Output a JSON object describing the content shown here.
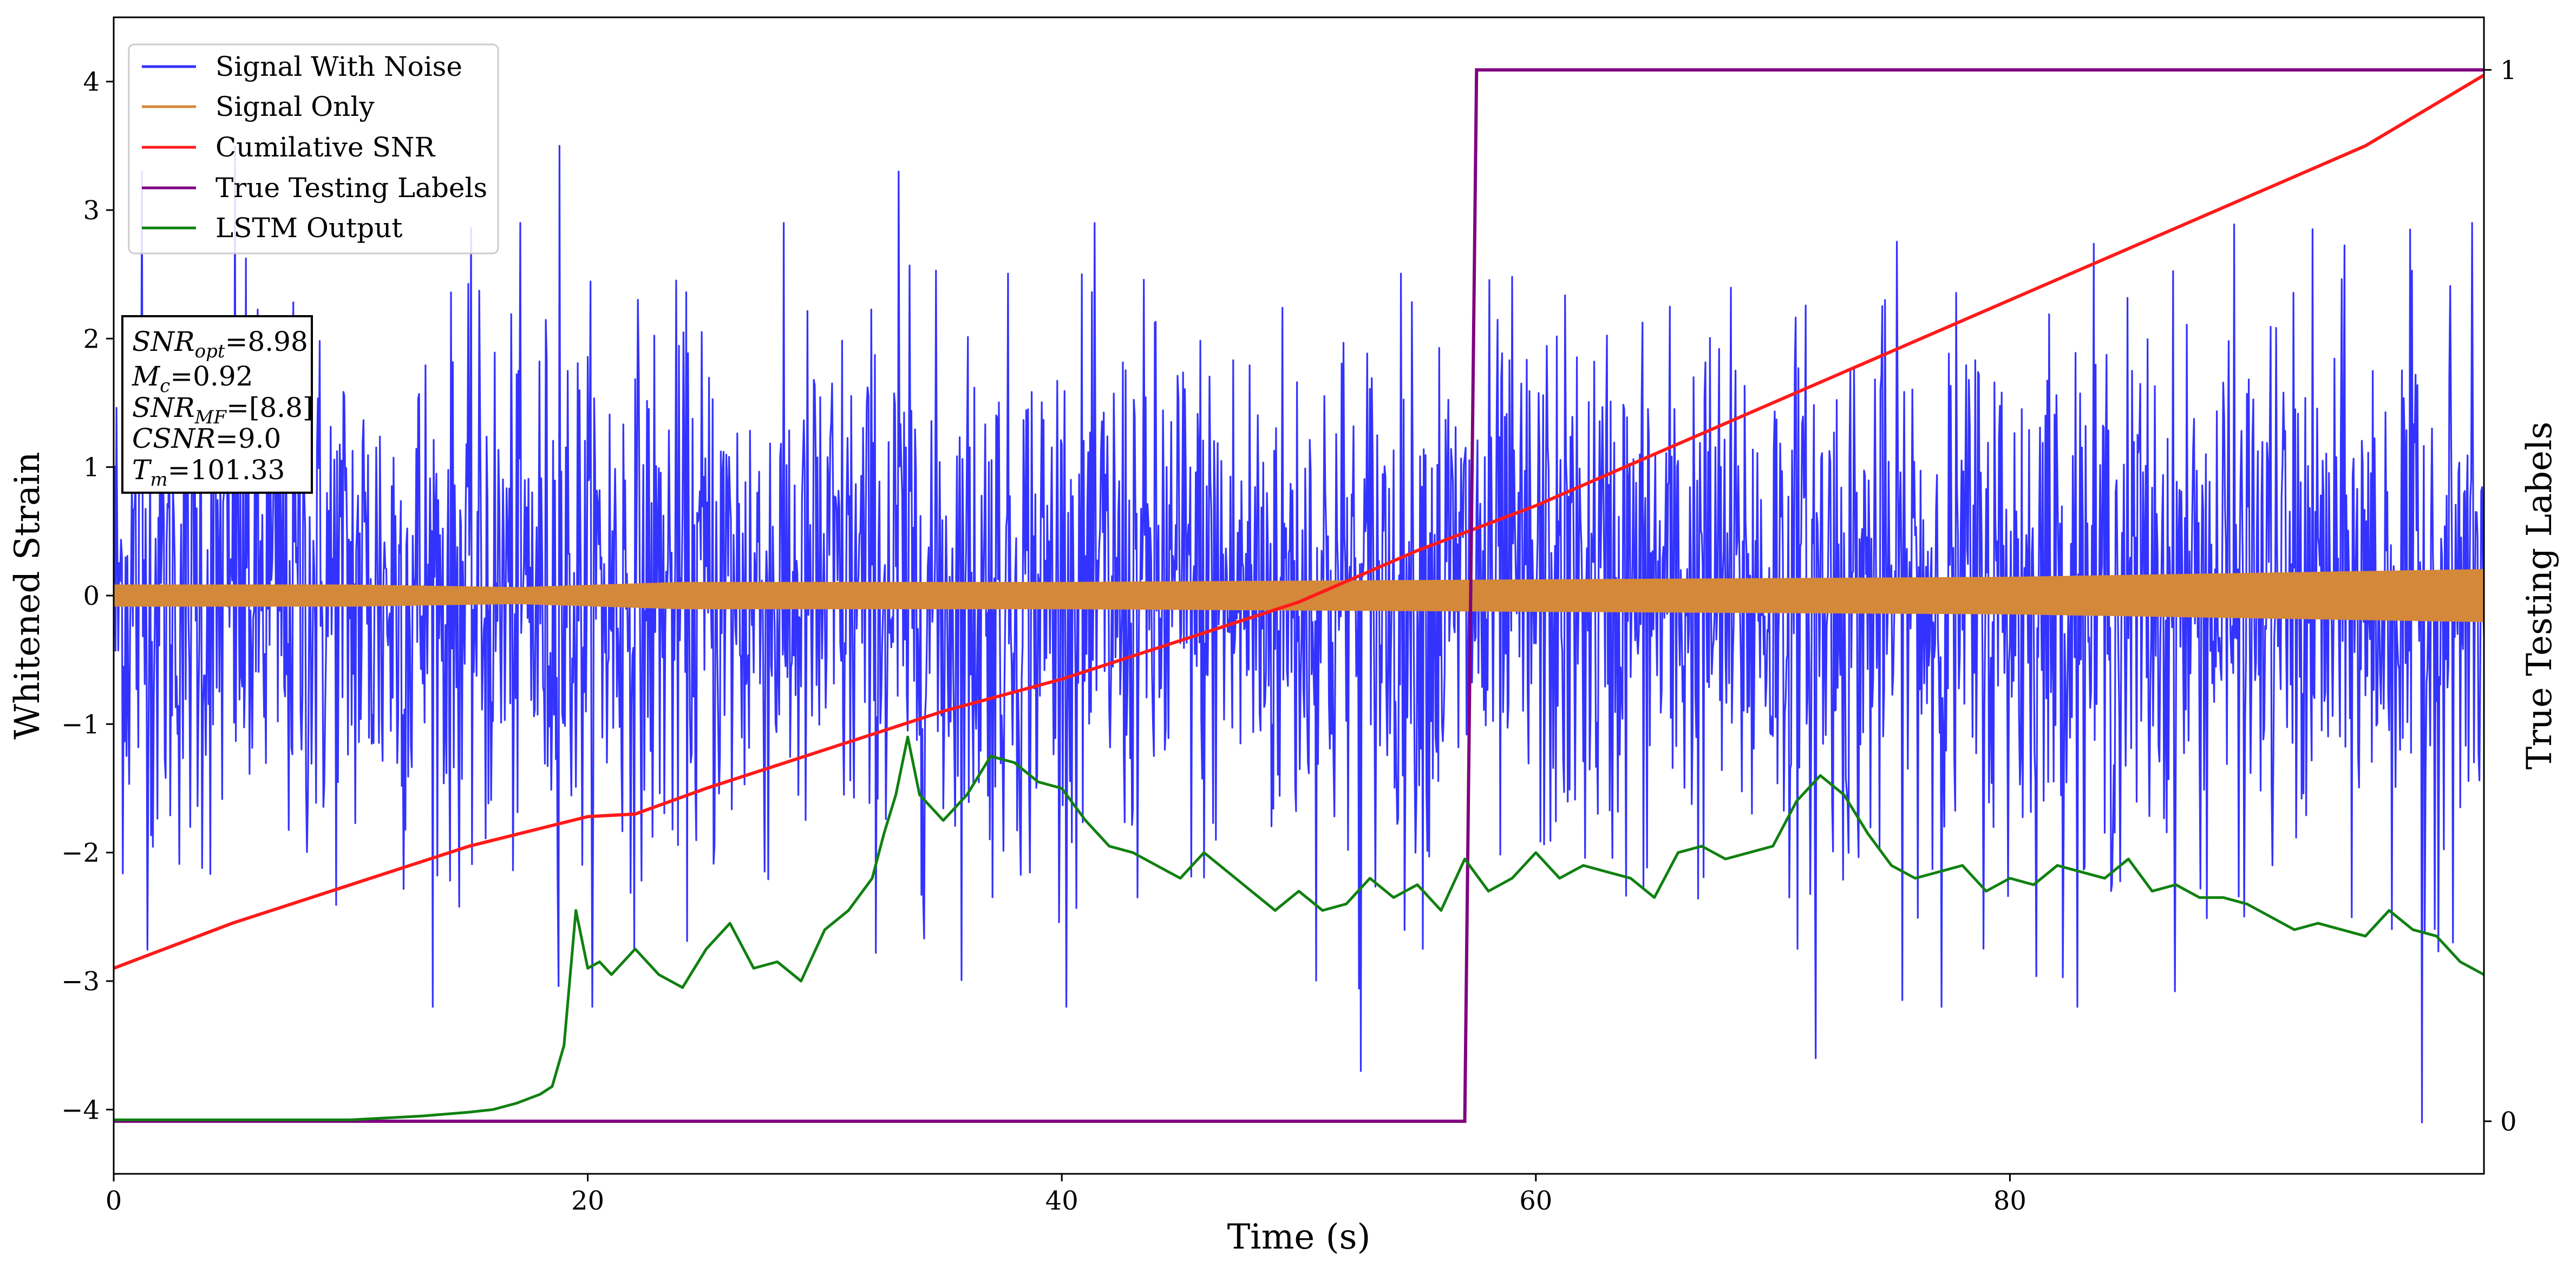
{
  "chart_data": {
    "type": "line",
    "xlabel": "Time (s)",
    "ylabel": "Whitened Strain",
    "y2label": "True Testing Labels",
    "xlim": [
      0,
      100
    ],
    "ylim": [
      -4.5,
      4.5
    ],
    "y2lim": [
      -0.05,
      1.05
    ],
    "xticks": [
      0,
      20,
      40,
      60,
      80
    ],
    "yticks": [
      -4,
      -3,
      -2,
      -1,
      0,
      1,
      2,
      3,
      4
    ],
    "y2ticks": [
      0,
      1
    ],
    "grid": false,
    "legend_position": "top-left",
    "colors": {
      "signal_with_noise": "#3333ff",
      "signal_only": "#d4883a",
      "cumulative_snr": "#ff1a1a",
      "true_labels": "#800080",
      "lstm_output": "#108010"
    },
    "series": [
      {
        "name": "Signal With Noise",
        "key": "signal_with_noise",
        "description_range": [
          -4.1,
          3.5
        ],
        "notable_points": [
          {
            "x": 1.2,
            "y": 3.3
          },
          {
            "x": 5.1,
            "y": 3.5
          },
          {
            "x": 18.8,
            "y": 3.5
          },
          {
            "x": 33.1,
            "y": 3.3
          },
          {
            "x": 52.6,
            "y": -3.7
          },
          {
            "x": 71.8,
            "y": -3.6
          },
          {
            "x": 97.4,
            "y": -4.1
          }
        ]
      },
      {
        "name": "Signal Only",
        "key": "signal_only",
        "amplitude": [
          [
            0,
            0.08
          ],
          [
            10,
            0.08
          ],
          [
            17,
            0.06
          ],
          [
            24,
            0.1
          ],
          [
            40,
            0.1
          ],
          [
            60,
            0.12
          ],
          [
            80,
            0.14
          ],
          [
            100,
            0.2
          ]
        ]
      },
      {
        "name": "Cumilative SNR",
        "key": "cumulative_snr",
        "x": [
          0,
          5,
          10,
          15,
          20,
          22,
          25,
          30,
          35,
          40,
          45,
          50,
          55,
          60,
          65,
          70,
          75,
          80,
          85,
          90,
          95,
          100
        ],
        "y": [
          -2.9,
          -2.55,
          -2.25,
          -1.95,
          -1.72,
          -1.7,
          -1.5,
          -1.2,
          -0.9,
          -0.65,
          -0.35,
          -0.05,
          0.35,
          0.7,
          1.1,
          1.5,
          1.9,
          2.3,
          2.7,
          3.1,
          3.5,
          4.05
        ]
      },
      {
        "name": "True Testing Labels",
        "key": "true_labels",
        "axis": "y2",
        "x": [
          0,
          57,
          57.5,
          100
        ],
        "y": [
          0,
          0,
          1,
          1
        ]
      },
      {
        "name": "LSTM Output",
        "key": "lstm_output",
        "x": [
          0,
          10,
          13,
          15,
          16,
          17,
          18,
          18.5,
          19,
          19.5,
          20,
          20.5,
          21,
          21.5,
          22,
          23,
          24,
          25,
          26,
          27,
          28,
          29,
          30,
          31,
          32,
          32.5,
          33,
          33.5,
          34,
          35,
          36,
          37,
          38,
          39,
          40,
          41,
          42,
          43,
          44,
          45,
          46,
          47,
          48,
          49,
          50,
          51,
          52,
          53,
          54,
          55,
          56,
          57,
          58,
          59,
          60,
          61,
          62,
          63,
          64,
          65,
          66,
          67,
          68,
          69,
          70,
          71,
          72,
          73,
          74,
          75,
          76,
          77,
          78,
          79,
          80,
          81,
          82,
          83,
          84,
          85,
          86,
          87,
          88,
          89,
          90,
          91,
          92,
          93,
          94,
          95,
          96,
          97,
          98,
          99,
          100
        ],
        "y": [
          -4.08,
          -4.08,
          -4.05,
          -4.02,
          -4.0,
          -3.95,
          -3.88,
          -3.82,
          -3.5,
          -2.45,
          -2.9,
          -2.85,
          -2.95,
          -2.85,
          -2.75,
          -2.95,
          -3.05,
          -2.75,
          -2.55,
          -2.9,
          -2.85,
          -3.0,
          -2.6,
          -2.45,
          -2.2,
          -1.85,
          -1.55,
          -1.1,
          -1.55,
          -1.75,
          -1.55,
          -1.25,
          -1.3,
          -1.45,
          -1.5,
          -1.75,
          -1.95,
          -2.0,
          -2.1,
          -2.2,
          -2.0,
          -2.15,
          -2.3,
          -2.45,
          -2.3,
          -2.45,
          -2.4,
          -2.2,
          -2.35,
          -2.25,
          -2.45,
          -2.05,
          -2.3,
          -2.2,
          -2.0,
          -2.2,
          -2.1,
          -2.15,
          -2.2,
          -2.35,
          -2.0,
          -1.95,
          -2.05,
          -2.0,
          -1.95,
          -1.6,
          -1.4,
          -1.55,
          -1.85,
          -2.1,
          -2.2,
          -2.15,
          -2.1,
          -2.3,
          -2.2,
          -2.25,
          -2.1,
          -2.15,
          -2.2,
          -2.05,
          -2.3,
          -2.25,
          -2.35,
          -2.35,
          -2.4,
          -2.5,
          -2.6,
          -2.55,
          -2.6,
          -2.65,
          -2.45,
          -2.6,
          -2.65,
          -2.85,
          -2.95
        ]
      }
    ],
    "stats_box": [
      "SNR_opt=8.98",
      "M_c=0.92",
      "SNR_MF=[8.8]",
      "CSNR=9.0",
      "T_m=101.33"
    ]
  },
  "legend": {
    "items": [
      {
        "label": "Signal With Noise",
        "key": "signal_with_noise"
      },
      {
        "label": "Signal Only",
        "key": "signal_only"
      },
      {
        "label": "Cumilative SNR",
        "key": "cumulative_snr"
      },
      {
        "label": "True Testing Labels",
        "key": "true_labels"
      },
      {
        "label": "LSTM Output",
        "key": "lstm_output"
      }
    ]
  },
  "stats": {
    "snr_opt_sym": "SNR",
    "snr_opt_sub": "opt",
    "snr_opt_val": "=8.98",
    "mc_sym": "M",
    "mc_sub": "c",
    "mc_val": "=0.92",
    "snr_mf_sym": "SNR",
    "snr_mf_sub": "MF",
    "snr_mf_val": "=[8.8]",
    "csnr_sym": "CSNR",
    "csnr_val": "=9.0",
    "tm_sym": "T",
    "tm_sub": "m",
    "tm_val": "=101.33"
  }
}
